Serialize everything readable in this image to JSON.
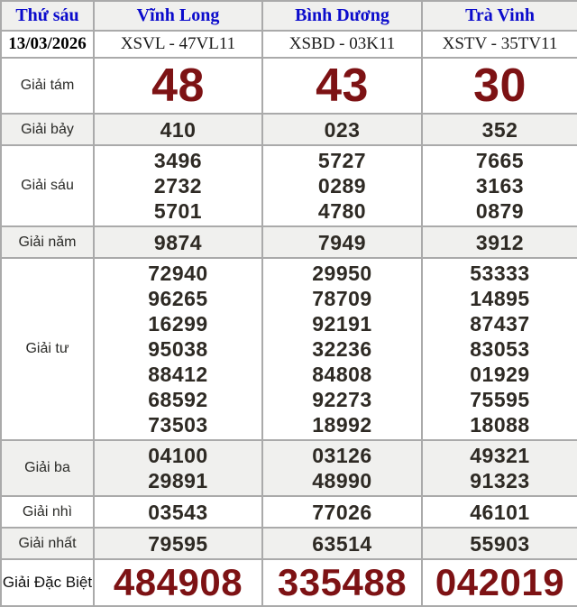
{
  "header": {
    "day_label": "Thứ sáu",
    "stations": [
      "Vĩnh Long",
      "Bình Dương",
      "Trà Vinh"
    ]
  },
  "draw_info": {
    "date": "13/03/2026",
    "codes": [
      "XSVL - 47VL11",
      "XSBD - 03K11",
      "XSTV - 35TV11"
    ]
  },
  "prizes": [
    {
      "label": "Giải tám",
      "cols": [
        [
          "48"
        ],
        [
          "43"
        ],
        [
          "30"
        ]
      ]
    },
    {
      "label": "Giải bảy",
      "cols": [
        [
          "410"
        ],
        [
          "023"
        ],
        [
          "352"
        ]
      ]
    },
    {
      "label": "Giải sáu",
      "cols": [
        [
          "3496",
          "2732",
          "5701"
        ],
        [
          "5727",
          "0289",
          "4780"
        ],
        [
          "7665",
          "3163",
          "0879"
        ]
      ]
    },
    {
      "label": "Giải năm",
      "cols": [
        [
          "9874"
        ],
        [
          "7949"
        ],
        [
          "3912"
        ]
      ]
    },
    {
      "label": "Giải tư",
      "cols": [
        [
          "72940",
          "96265",
          "16299",
          "95038",
          "88412",
          "68592",
          "73503"
        ],
        [
          "29950",
          "78709",
          "92191",
          "32236",
          "84808",
          "92273",
          "18992"
        ],
        [
          "53333",
          "14895",
          "87437",
          "83053",
          "01929",
          "75595",
          "18088"
        ]
      ]
    },
    {
      "label": "Giải ba",
      "cols": [
        [
          "04100",
          "29891"
        ],
        [
          "03126",
          "48990"
        ],
        [
          "49321",
          "91323"
        ]
      ]
    },
    {
      "label": "Giải nhì",
      "cols": [
        [
          "03543"
        ],
        [
          "77026"
        ],
        [
          "46101"
        ]
      ]
    },
    {
      "label": "Giải nhất",
      "cols": [
        [
          "79595"
        ],
        [
          "63514"
        ],
        [
          "55903"
        ]
      ]
    },
    {
      "label": "Giải Đặc Biệt",
      "cols": [
        [
          "484908"
        ],
        [
          "335488"
        ],
        [
          "042019"
        ]
      ]
    }
  ],
  "colors": {
    "header_text": "#0b0bcc",
    "prize_highlight": "#7d1214",
    "number_text": "#2e2a24",
    "row_alt_bg": "#f0f0ee",
    "border": "#aaaaaa"
  }
}
